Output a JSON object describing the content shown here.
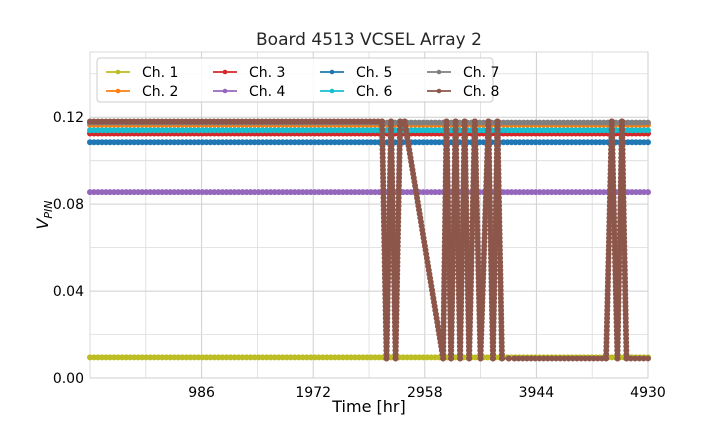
{
  "chart_data": {
    "type": "line",
    "title": "Board 4513 VCSEL Array 2",
    "xlabel": "Time [hr]",
    "ylabel": "V",
    "ylabel_sub": "PIN",
    "xlim": [
      0,
      4930
    ],
    "ylim": [
      0,
      0.15
    ],
    "xticks": [
      986,
      1972,
      2958,
      3944,
      4930
    ],
    "xtick_labels": [
      "986",
      "1972",
      "2958",
      "3944",
      "4930"
    ],
    "yticks": [
      0.0,
      0.04,
      0.08,
      0.12
    ],
    "ytick_labels": [
      "0.00",
      "0.04",
      "0.08",
      "0.12"
    ],
    "grid": true,
    "legend_position": "top-left",
    "series": [
      {
        "name": "Ch. 1",
        "color": "#bcbd22",
        "x": [
          0,
          4930
        ],
        "y": [
          0.0095,
          0.0095
        ]
      },
      {
        "name": "Ch. 2",
        "color": "#ff7f0e",
        "x": [
          0,
          4930
        ],
        "y": [
          0.1165,
          0.1165
        ]
      },
      {
        "name": "Ch. 3",
        "color": "#d62728",
        "x": [
          0,
          4930
        ],
        "y": [
          0.1125,
          0.1125
        ]
      },
      {
        "name": "Ch. 4",
        "color": "#9467bd",
        "x": [
          0,
          4930
        ],
        "y": [
          0.0855,
          0.0855
        ]
      },
      {
        "name": "Ch. 5",
        "color": "#1f77b4",
        "x": [
          0,
          4930
        ],
        "y": [
          0.1085,
          0.1085
        ]
      },
      {
        "name": "Ch. 6",
        "color": "#17becf",
        "x": [
          0,
          4930
        ],
        "y": [
          0.114,
          0.114
        ]
      },
      {
        "name": "Ch. 7",
        "color": "#7f7f7f",
        "x": [
          0,
          4930
        ],
        "y": [
          0.1175,
          0.1175
        ]
      },
      {
        "name": "Ch. 8",
        "color": "#8c564b",
        "x": [
          0,
          2580,
          2620,
          2660,
          2700,
          2740,
          2780,
          3120,
          3150,
          3190,
          3230,
          3270,
          3310,
          3350,
          3400,
          3450,
          3520,
          3560,
          3600,
          3640,
          3700,
          3750,
          4560,
          4610,
          4660,
          4700,
          4740,
          4930
        ],
        "y": [
          0.118,
          0.118,
          0.009,
          0.118,
          0.009,
          0.118,
          0.118,
          0.009,
          0.118,
          0.009,
          0.118,
          0.009,
          0.118,
          0.009,
          0.118,
          0.009,
          0.118,
          0.009,
          0.118,
          0.009,
          0.009,
          0.009,
          0.009,
          0.118,
          0.009,
          0.118,
          0.009,
          0.009
        ]
      }
    ]
  }
}
